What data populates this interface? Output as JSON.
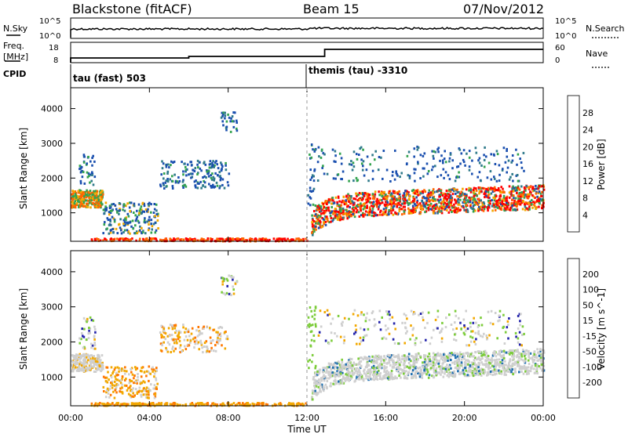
{
  "header": {
    "station": "Blackstone (fitACF)",
    "beam": "Beam 15",
    "date": "07/Nov/2012"
  },
  "top_panels": {
    "nsky_label": "N.Sky",
    "nsky_tick_top": "10^5",
    "nsky_tick_bottom": "10^0",
    "nsearch_label": "N.Search",
    "nsearch_tick_top": "10^5",
    "nsearch_tick_bottom": "10^0",
    "freq_label_line1": "Freq.",
    "freq_label_line2": "[MHz]",
    "freq_tick_top": "18",
    "freq_tick_bottom": "8",
    "nave_label": "Nave",
    "nave_tick_top": "60",
    "nave_tick_bottom": "0",
    "cpid_label": "CPID",
    "cpid_segments": [
      {
        "start_hour": 0,
        "label": "tau (fast) 503"
      },
      {
        "start_hour": 12,
        "label": "themis (tau) -3310"
      }
    ]
  },
  "chart_data": [
    {
      "type": "heatmap",
      "name": "power",
      "ylabel": "Slant Range [km]",
      "yticks": [
        1000,
        2000,
        3000,
        4000
      ],
      "ylim": [
        180,
        4600
      ],
      "xlim": [
        0,
        24
      ],
      "colorbar_label": "Power [dB]",
      "colorbar_ticks": [
        "4",
        "8",
        "12",
        "16",
        "20",
        "24",
        "28"
      ],
      "colors": [
        "#0000ff",
        "#1a4faf",
        "#2f7a8a",
        "#33a34f",
        "#7cc844",
        "#f2a800",
        "#ff6600",
        "#ff0000"
      ]
    },
    {
      "type": "heatmap",
      "name": "velocity",
      "ylabel": "Slant Range [km]",
      "yticks": [
        1000,
        2000,
        3000,
        4000
      ],
      "ylim": [
        180,
        4600
      ],
      "xlim": [
        0,
        24
      ],
      "xlabel": "Time UT",
      "xticks": [
        "00:00",
        "04:00",
        "08:00",
        "12:00",
        "16:00",
        "20:00",
        "00:00"
      ],
      "colorbar_label": "Velocity [m s^-1]",
      "colorbar_ticks": [
        "200",
        "100",
        "50",
        "15",
        "-15",
        "-50",
        "-100",
        "-200"
      ],
      "colors": [
        "#2222aa",
        "#1f6fb0",
        "#2f8a6a",
        "#7ccc3a",
        "#cfcfcf",
        "#f2a800",
        "#ff7700",
        "#ff2200",
        "#dd0000"
      ]
    }
  ]
}
